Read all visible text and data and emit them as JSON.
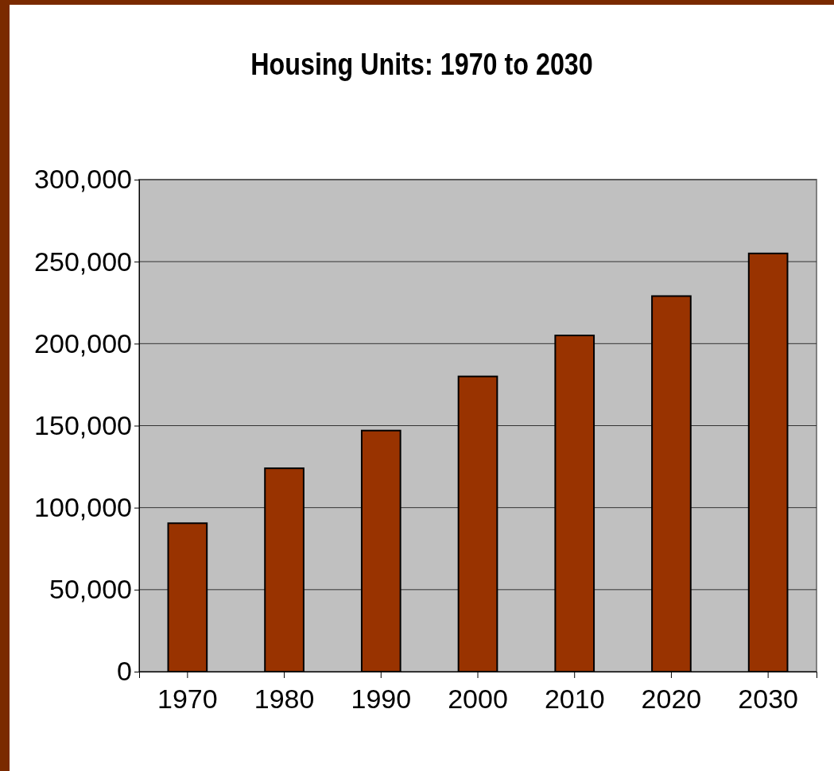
{
  "chart_data": {
    "type": "bar",
    "title": "Housing Units: 1970 to 2030",
    "categories": [
      "1970",
      "1980",
      "1990",
      "2000",
      "2010",
      "2020",
      "2030"
    ],
    "values": [
      90500,
      124000,
      147000,
      180000,
      205000,
      229000,
      255000
    ],
    "color": "#993300",
    "ylim": [
      0,
      300000
    ],
    "yticks": [
      {
        "value": 0,
        "label": "0"
      },
      {
        "value": 50000,
        "label": "50,000"
      },
      {
        "value": 100000,
        "label": "100,000"
      },
      {
        "value": 150000,
        "label": "150,000"
      },
      {
        "value": 200000,
        "label": "200,000"
      },
      {
        "value": 250000,
        "label": "250,000"
      },
      {
        "value": 300000,
        "label": "300,000"
      }
    ],
    "grid": "y"
  }
}
